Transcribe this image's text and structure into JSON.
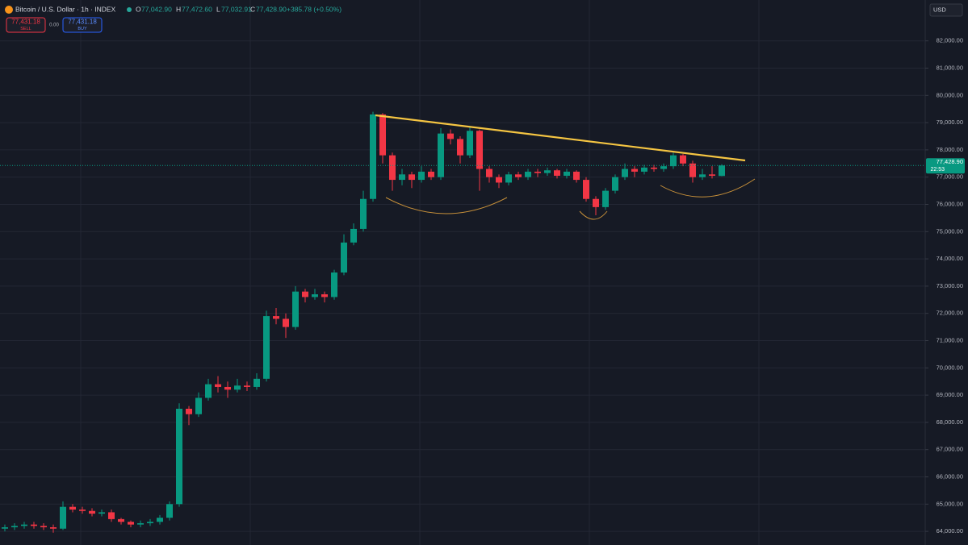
{
  "header": {
    "symbol": "Bitcoin / U.S. Dollar · 1h · INDEX",
    "o_label": "O",
    "o_value": "77,042.90",
    "h_label": "H",
    "h_value": "77,472.60",
    "l_label": "L",
    "l_value": "77,032.91",
    "c_label": "C",
    "c_value": "77,428.90",
    "change": "+385.78 (+0.50%)",
    "sell_price": "77,431.18",
    "sell_label": "SELL",
    "spread": "0.00",
    "buy_price": "77,431.18",
    "buy_label": "BUY",
    "currency": "USD"
  },
  "chart_data": {
    "type": "candlestick",
    "up_color": "#089981",
    "down_color": "#f23645",
    "last_price_label": "77,428.90",
    "countdown": "22:53",
    "ylim": [
      63500,
      83500
    ],
    "yticks": [
      {
        "value": 64000,
        "label": "64,000.00"
      },
      {
        "value": 65000,
        "label": "65,000.00"
      },
      {
        "value": 66000,
        "label": "66,000.00"
      },
      {
        "value": 67000,
        "label": "67,000.00"
      },
      {
        "value": 68000,
        "label": "68,000.00"
      },
      {
        "value": 69000,
        "label": "69,000.00"
      },
      {
        "value": 70000,
        "label": "70,000.00"
      },
      {
        "value": 71000,
        "label": "71,000.00"
      },
      {
        "value": 72000,
        "label": "72,000.00"
      },
      {
        "value": 73000,
        "label": "73,000.00"
      },
      {
        "value": 74000,
        "label": "74,000.00"
      },
      {
        "value": 75000,
        "label": "75,000.00"
      },
      {
        "value": 76000,
        "label": "76,000.00"
      },
      {
        "value": 77000,
        "label": "77,000.00"
      },
      {
        "value": 78000,
        "label": "78,000.00"
      },
      {
        "value": 79000,
        "label": "79,000.00"
      },
      {
        "value": 80000,
        "label": "80,000.00"
      },
      {
        "value": 81000,
        "label": "81,000.00"
      },
      {
        "value": 82000,
        "label": "82,000.00"
      }
    ],
    "grid": true,
    "open": [
      64100,
      64150,
      64200,
      64250,
      64200,
      64150,
      64100,
      64900,
      64800,
      64750,
      64650,
      64700,
      64450,
      64350,
      64250,
      64300,
      64350,
      64500,
      65000,
      68500,
      68300,
      68900,
      69400,
      69300,
      69200,
      69350,
      69300,
      69600,
      71900,
      71800,
      71500,
      72800,
      72600,
      72700,
      72600,
      73500,
      74600,
      75100,
      76200,
      79300,
      77800,
      76900,
      77100,
      76900,
      77200,
      77000,
      78600,
      78400,
      77800,
      78700,
      77300,
      77000,
      76800,
      77100,
      77000,
      77200,
      77150,
      77250,
      77050,
      77200,
      76900,
      76200,
      75900,
      76500,
      77000,
      77300,
      77200,
      77350,
      77300,
      77400,
      77800,
      77500,
      77000,
      77100,
      77042.9
    ],
    "high": [
      64250,
      64300,
      64350,
      64350,
      64300,
      64250,
      65100,
      65000,
      64900,
      64850,
      64800,
      64800,
      64500,
      64400,
      64400,
      64450,
      64600,
      65100,
      68700,
      68600,
      69100,
      69600,
      69700,
      69500,
      69600,
      69500,
      69800,
      72100,
      72200,
      72000,
      73000,
      72900,
      72900,
      72800,
      73600,
      74900,
      75300,
      76500,
      79400,
      79350,
      77900,
      77300,
      77200,
      77400,
      77300,
      78800,
      78750,
      78500,
      78850,
      78750,
      77400,
      77100,
      77200,
      77200,
      77300,
      77300,
      77350,
      77300,
      77300,
      77250,
      77000,
      76300,
      76600,
      77100,
      77500,
      77400,
      77450,
      77450,
      77500,
      77900,
      77850,
      77600,
      77300,
      77400,
      77472.6
    ],
    "low": [
      64000,
      64050,
      64100,
      64100,
      64050,
      63950,
      64050,
      64700,
      64650,
      64550,
      64550,
      64350,
      64250,
      64150,
      64150,
      64200,
      64250,
      64400,
      64900,
      67900,
      68200,
      68800,
      69100,
      68900,
      69100,
      69150,
      69200,
      69500,
      71600,
      71100,
      71400,
      72400,
      72500,
      72400,
      72500,
      73400,
      74500,
      75000,
      76100,
      77500,
      76500,
      76700,
      76600,
      76800,
      76900,
      76900,
      78200,
      77500,
      77700,
      76500,
      76800,
      76600,
      76700,
      76900,
      76900,
      77000,
      77050,
      76950,
      76950,
      76800,
      76100,
      75600,
      75800,
      76400,
      76900,
      77000,
      77100,
      77200,
      77200,
      77300,
      77400,
      76800,
      76900,
      76950,
      77032.91
    ],
    "close": [
      64150,
      64200,
      64250,
      64200,
      64150,
      64100,
      64900,
      64800,
      64750,
      64650,
      64700,
      64450,
      64350,
      64250,
      64300,
      64350,
      64500,
      65000,
      68500,
      68300,
      68900,
      69400,
      69300,
      69200,
      69350,
      69300,
      69600,
      71900,
      71800,
      71500,
      72800,
      72600,
      72700,
      72600,
      73500,
      74600,
      75100,
      76200,
      79300,
      77800,
      76900,
      77100,
      76900,
      77200,
      77000,
      78600,
      78400,
      77800,
      78700,
      77300,
      77000,
      76800,
      77100,
      77000,
      77200,
      77150,
      77250,
      77050,
      77200,
      76900,
      76200,
      75900,
      76500,
      77000,
      77300,
      77200,
      77350,
      77300,
      77400,
      77800,
      77500,
      77000,
      77100,
      77050,
      77428.9
    ]
  }
}
